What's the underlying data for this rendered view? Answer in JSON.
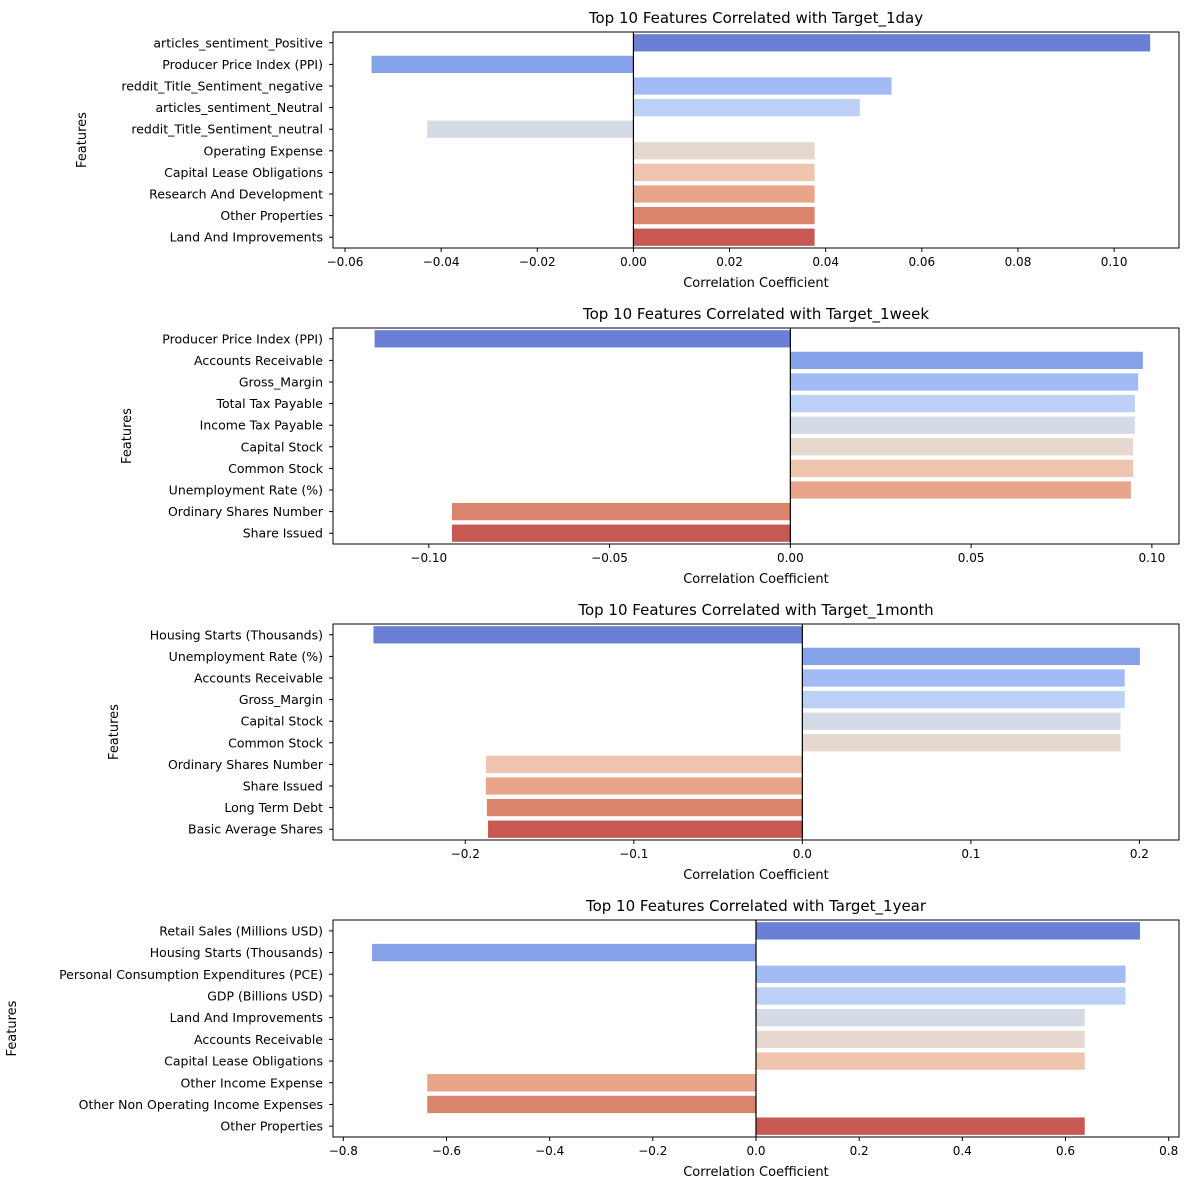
{
  "chart_data": [
    {
      "type": "bar",
      "orientation": "horizontal",
      "title": "Top 10 Features Correlated with Target_1day",
      "xlabel": "Correlation Coefficient",
      "ylabel": "Features",
      "xlim": [
        -0.0625,
        0.1135
      ],
      "xticks": [
        -0.06,
        -0.04,
        -0.02,
        0.0,
        0.02,
        0.04,
        0.06,
        0.08,
        0.1
      ],
      "xtick_labels": [
        "−0.06",
        "−0.04",
        "−0.02",
        "0.00",
        "0.02",
        "0.04",
        "0.06",
        "0.08",
        "0.10"
      ],
      "categories": [
        "articles_sentiment_Positive",
        "Producer Price Index (PPI)",
        "reddit_Title_Sentiment_negative",
        "articles_sentiment_Neutral",
        "reddit_Title_Sentiment_neutral",
        "Operating Expense",
        "Capital Lease Obligations",
        "Research And Development",
        "Other Properties",
        "Land And Improvements"
      ],
      "values": [
        0.1075,
        -0.0545,
        0.0537,
        0.0471,
        -0.0429,
        0.0377,
        0.0377,
        0.0377,
        0.0377,
        0.0377
      ],
      "colors": [
        "#6a7fd5",
        "#85a2e8",
        "#a2bbf4",
        "#bdd0f5",
        "#d4dbe6",
        "#e6d7cf",
        "#efc5b0",
        "#e8a58a",
        "#da846d",
        "#c65a53"
      ]
    },
    {
      "type": "bar",
      "orientation": "horizontal",
      "title": "Top 10 Features Correlated with Target_1week",
      "xlabel": "Correlation Coefficient",
      "ylabel": "Features",
      "xlim": [
        -0.1265,
        0.1075
      ],
      "xticks": [
        -0.1,
        -0.05,
        0.0,
        0.05,
        0.1
      ],
      "xtick_labels": [
        "−0.10",
        "−0.05",
        "0.00",
        "0.05",
        "0.10"
      ],
      "categories": [
        "Producer Price Index (PPI)",
        "Accounts Receivable",
        "Gross_Margin",
        "Total Tax Payable",
        "Income Tax Payable",
        "Capital Stock",
        "Common Stock",
        "Unemployment Rate (%)",
        "Ordinary Shares Number",
        "Share Issued"
      ],
      "values": [
        -0.115,
        0.0975,
        0.0962,
        0.0953,
        0.0953,
        0.0948,
        0.0948,
        0.0942,
        -0.0936,
        -0.0936
      ],
      "colors": [
        "#6a7fd5",
        "#85a2e8",
        "#a2bbf4",
        "#bdd0f5",
        "#d4dbe6",
        "#e6d7cf",
        "#efc5b0",
        "#e8a58a",
        "#da846d",
        "#c65a53"
      ]
    },
    {
      "type": "bar",
      "orientation": "horizontal",
      "title": "Top 10 Features Correlated with Target_1month",
      "xlabel": "Correlation Coefficient",
      "ylabel": "Features",
      "xlim": [
        -0.2785,
        0.2235
      ],
      "xticks": [
        -0.2,
        -0.1,
        0.0,
        0.1,
        0.2
      ],
      "xtick_labels": [
        "−0.2",
        "−0.1",
        "0.0",
        "0.1",
        "0.2"
      ],
      "categories": [
        "Housing Starts (Thousands)",
        "Unemployment Rate (%)",
        "Accounts Receivable",
        "Gross_Margin",
        "Capital Stock",
        "Common Stock",
        "Ordinary Shares Number",
        "Share Issued",
        "Long Term Debt",
        "Basic Average Shares"
      ],
      "values": [
        -0.2545,
        0.2003,
        0.1913,
        0.1913,
        0.1888,
        0.1888,
        -0.1878,
        -0.1878,
        -0.1872,
        -0.1865
      ],
      "colors": [
        "#6a7fd5",
        "#85a2e8",
        "#a2bbf4",
        "#bdd0f5",
        "#d4dbe6",
        "#e6d7cf",
        "#efc5b0",
        "#e8a58a",
        "#da846d",
        "#c65a53"
      ]
    },
    {
      "type": "bar",
      "orientation": "horizontal",
      "title": "Top 10 Features Correlated with Target_1year",
      "xlabel": "Correlation Coefficient",
      "ylabel": "Features",
      "xlim": [
        -0.82,
        0.82
      ],
      "xticks": [
        -0.8,
        -0.6,
        -0.4,
        -0.2,
        0.0,
        0.2,
        0.4,
        0.6,
        0.8
      ],
      "xtick_labels": [
        "−0.8",
        "−0.6",
        "−0.4",
        "−0.2",
        "0.0",
        "0.2",
        "0.4",
        "0.6",
        "0.8"
      ],
      "categories": [
        "Retail Sales (Millions USD)",
        "Housing Starts (Thousands)",
        "Personal Consumption Expenditures (PCE)",
        "GDP (Billions USD)",
        "Land And Improvements",
        "Accounts Receivable",
        "Capital Lease Obligations",
        "Other Income Expense",
        "Other Non Operating Income Expenses",
        "Other Properties"
      ],
      "values": [
        0.7443,
        -0.7443,
        0.7163,
        0.7163,
        0.6373,
        0.6373,
        0.6373,
        -0.6373,
        -0.6373,
        0.6373
      ],
      "colors": [
        "#6a7fd5",
        "#85a2e8",
        "#a2bbf4",
        "#bdd0f5",
        "#d4dbe6",
        "#e6d7cf",
        "#efc5b0",
        "#e8a58a",
        "#da846d",
        "#c65a53"
      ]
    }
  ]
}
